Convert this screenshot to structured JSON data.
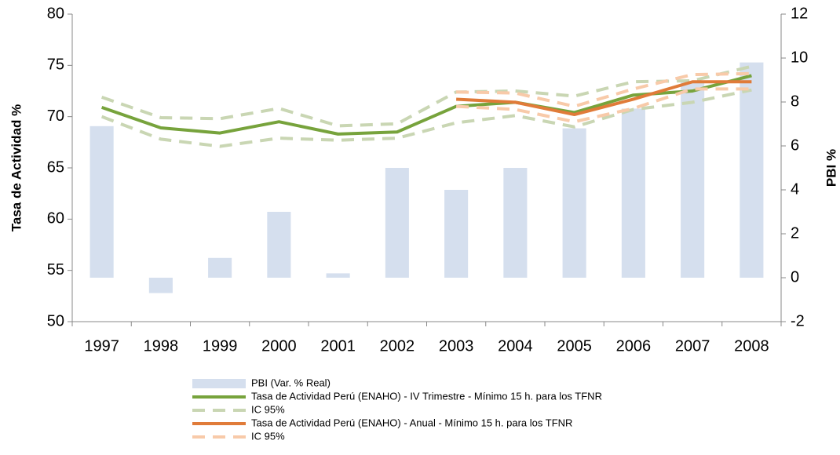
{
  "chart_data": {
    "type": "bar-line",
    "y_label": "Tasa de Actividad %",
    "y2_label": "PBI %",
    "categories": [
      "1997",
      "1998",
      "1999",
      "2000",
      "2001",
      "2002",
      "2003",
      "2004",
      "2005",
      "2006",
      "2007",
      "2008"
    ],
    "ylim": [
      50,
      80
    ],
    "yticks": [
      50,
      55,
      60,
      65,
      70,
      75,
      80
    ],
    "y2lim": [
      -2,
      12
    ],
    "y2ticks": [
      -2,
      0,
      2,
      4,
      6,
      8,
      10,
      12
    ],
    "series": [
      {
        "name": "PBI (Var. % Real)",
        "type": "bar",
        "axis": "y2",
        "color": "#d5dfee",
        "values": [
          6.9,
          -0.7,
          0.9,
          3.0,
          0.2,
          5.0,
          4.0,
          5.0,
          6.8,
          7.7,
          8.9,
          9.8
        ]
      },
      {
        "name": "Tasa de Actividad Perú (ENAHO) - IV Trimestre - Mínimo 15 h. para los TFNR",
        "type": "line",
        "color": "#77a33c",
        "values": [
          70.9,
          68.9,
          68.4,
          69.5,
          68.3,
          68.5,
          71.0,
          71.4,
          70.4,
          72.1,
          72.5,
          74.0
        ],
        "ci": {
          "name": "IC 95%",
          "color": "#c9d6b3",
          "upper": [
            71.9,
            69.9,
            69.8,
            70.8,
            69.1,
            69.3,
            72.4,
            72.5,
            72.0,
            73.4,
            73.5,
            74.9
          ],
          "lower": [
            70.0,
            67.8,
            67.1,
            67.9,
            67.7,
            67.9,
            69.4,
            70.1,
            69.0,
            70.7,
            71.4,
            72.6
          ]
        }
      },
      {
        "name": "Tasa de Actividad Perú (ENAHO) - Anual - Mínimo 15 h. para los TFNR",
        "type": "line",
        "color": "#e07b39",
        "values": [
          null,
          null,
          null,
          null,
          null,
          null,
          71.7,
          71.4,
          70.2,
          71.7,
          73.4,
          73.4
        ],
        "ci": {
          "name": "IC 95%",
          "color": "#f8caa9",
          "upper": [
            null,
            null,
            null,
            null,
            null,
            null,
            72.4,
            72.3,
            71.0,
            72.7,
            74.1,
            74.2
          ],
          "lower": [
            null,
            null,
            null,
            null,
            null,
            null,
            71.0,
            70.7,
            69.5,
            70.8,
            72.7,
            72.7
          ]
        }
      }
    ]
  }
}
